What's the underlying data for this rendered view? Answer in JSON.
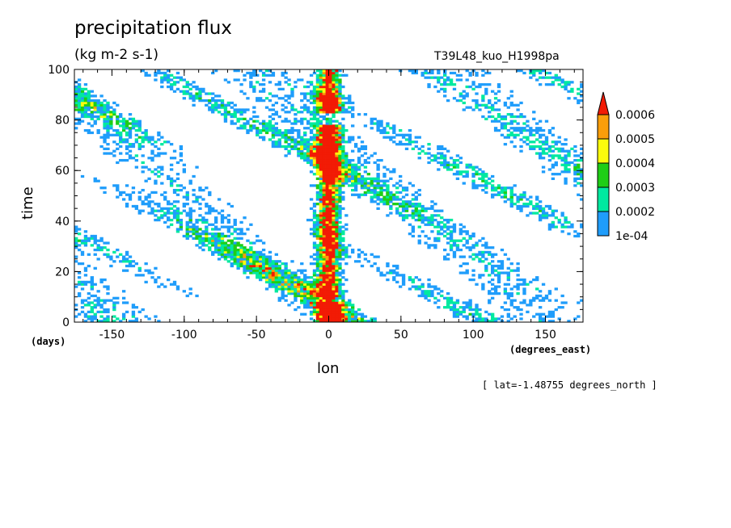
{
  "chart_data": {
    "type": "heatmap",
    "title": "precipitation flux",
    "units": "(kg m-2 s-1)",
    "run_label": "T39L48_kuo_H1998pa",
    "xlabel": "lon",
    "x_units": "(degrees_east)",
    "ylabel": "time",
    "y_units": "(days)",
    "subtitle": "[ lat=-1.48755 degrees_north ]",
    "xlim": [
      -176,
      176
    ],
    "ylim": [
      0,
      100
    ],
    "x_ticks": [
      -150,
      -100,
      -50,
      0,
      50,
      100,
      150
    ],
    "x_tick_labels": [
      "-150",
      "-100",
      "-50",
      "0",
      "50",
      "100",
      "150"
    ],
    "y_ticks": [
      0,
      20,
      40,
      60,
      80,
      100
    ],
    "y_tick_labels": [
      "0",
      "20",
      "40",
      "60",
      "80",
      "100"
    ],
    "colorbar": {
      "levels": [
        0.0001,
        0.0002,
        0.0003,
        0.0004,
        0.0005,
        0.0006
      ],
      "labels": [
        "1e-04",
        "0.0002",
        "0.0003",
        "0.0004",
        "0.0005",
        "0.0006"
      ],
      "colors": [
        "#1f9dfb",
        "#00e9a0",
        "#1fce16",
        "#fbfb0c",
        "#fa9e0a",
        "#f21b05"
      ],
      "extend": "max"
    },
    "features": {
      "stationary_band_center_lon": 0,
      "propagation": "westward-moving streaks across all longitudes"
    }
  }
}
